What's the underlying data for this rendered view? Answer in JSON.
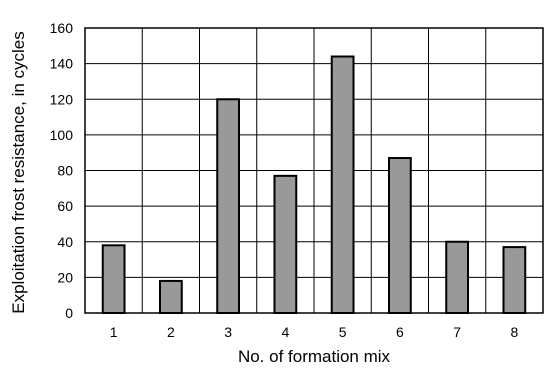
{
  "chart_data": {
    "type": "bar",
    "categories": [
      "1",
      "2",
      "3",
      "4",
      "5",
      "6",
      "7",
      "8"
    ],
    "values": [
      38,
      18,
      120,
      77,
      144,
      87,
      40,
      37
    ],
    "xlabel": "No. of formation mix",
    "ylabel": "Exploitation frost resistance, in cycles",
    "ylim": [
      0,
      160
    ],
    "yticks": [
      "0",
      "20",
      "40",
      "60",
      "80",
      "100",
      "120",
      "140",
      "160"
    ],
    "grid": true,
    "bar_color": "#999999",
    "legend": false
  }
}
